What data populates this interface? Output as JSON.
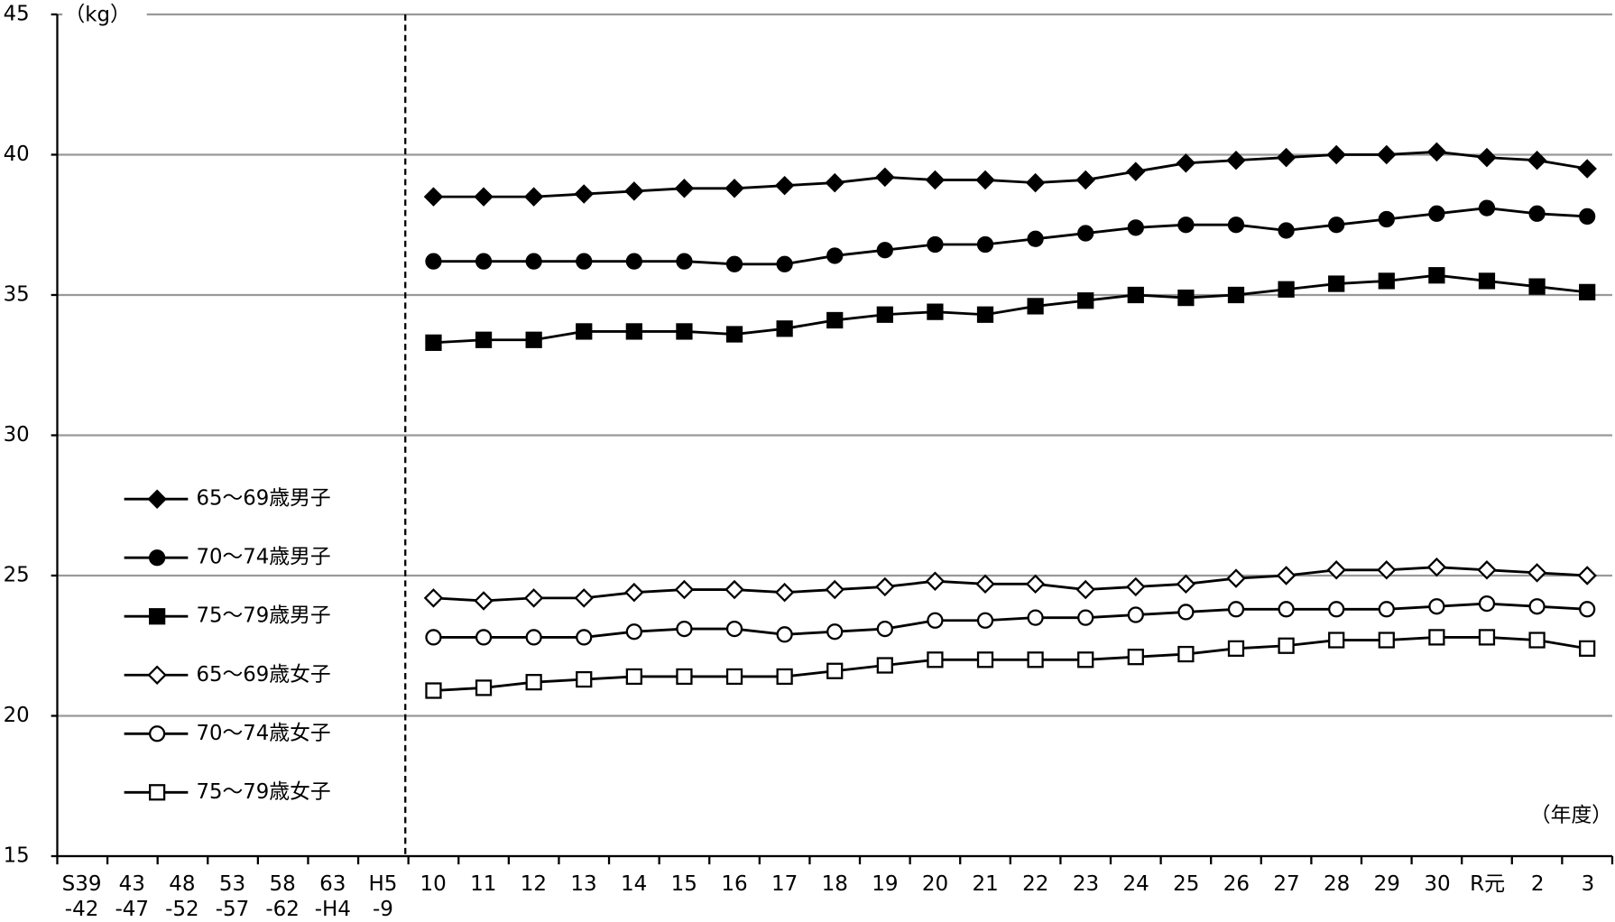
{
  "chart_data": {
    "type": "line",
    "y_unit_label": "（kg）",
    "x_unit_label": "（年度）",
    "categories": [
      "S39\n-42",
      "43\n-47",
      "48\n-52",
      "53\n-57",
      "58\n-62",
      "63\n-H4",
      "H5\n-9",
      "10",
      "11",
      "12",
      "13",
      "14",
      "15",
      "16",
      "17",
      "18",
      "19",
      "20",
      "21",
      "22",
      "23",
      "24",
      "25",
      "26",
      "27",
      "28",
      "29",
      "30",
      "R元",
      "2",
      "3"
    ],
    "ylim": [
      15,
      45
    ],
    "yticks": [
      15,
      20,
      25,
      30,
      35,
      40,
      45
    ],
    "grid": true,
    "legend": "left",
    "series": [
      {
        "name": "65～69歳男子",
        "color": "#000000",
        "marker": "diamond",
        "filled": true,
        "values": [
          null,
          null,
          null,
          null,
          null,
          null,
          null,
          38.5,
          38.5,
          38.5,
          38.6,
          38.7,
          38.8,
          38.8,
          38.9,
          39.0,
          39.2,
          39.1,
          39.1,
          39.0,
          39.1,
          39.4,
          39.7,
          39.8,
          39.9,
          40.0,
          40.0,
          40.1,
          39.9,
          39.8,
          39.5
        ]
      },
      {
        "name": "70～74歳男子",
        "color": "#000000",
        "marker": "circle",
        "filled": true,
        "values": [
          null,
          null,
          null,
          null,
          null,
          null,
          null,
          36.2,
          36.2,
          36.2,
          36.2,
          36.2,
          36.2,
          36.1,
          36.1,
          36.4,
          36.6,
          36.8,
          36.8,
          37.0,
          37.2,
          37.4,
          37.5,
          37.5,
          37.3,
          37.5,
          37.7,
          37.9,
          38.1,
          37.9,
          37.8
        ]
      },
      {
        "name": "75～79歳男子",
        "color": "#000000",
        "marker": "square",
        "filled": true,
        "values": [
          null,
          null,
          null,
          null,
          null,
          null,
          null,
          33.3,
          33.4,
          33.4,
          33.7,
          33.7,
          33.7,
          33.6,
          33.8,
          34.1,
          34.3,
          34.4,
          34.3,
          34.6,
          34.8,
          35.0,
          34.9,
          35.0,
          35.2,
          35.4,
          35.5,
          35.7,
          35.5,
          35.3,
          35.1
        ]
      },
      {
        "name": "65～69歳女子",
        "color": "#000000",
        "marker": "diamond",
        "filled": false,
        "values": [
          null,
          null,
          null,
          null,
          null,
          null,
          null,
          24.2,
          24.1,
          24.2,
          24.2,
          24.4,
          24.5,
          24.5,
          24.4,
          24.5,
          24.6,
          24.8,
          24.7,
          24.7,
          24.5,
          24.6,
          24.7,
          24.9,
          25.0,
          25.2,
          25.2,
          25.3,
          25.2,
          25.1,
          25.0
        ]
      },
      {
        "name": "70～74歳女子",
        "color": "#000000",
        "marker": "circle",
        "filled": false,
        "values": [
          null,
          null,
          null,
          null,
          null,
          null,
          null,
          22.8,
          22.8,
          22.8,
          22.8,
          23.0,
          23.1,
          23.1,
          22.9,
          23.0,
          23.1,
          23.4,
          23.4,
          23.5,
          23.5,
          23.6,
          23.7,
          23.8,
          23.8,
          23.8,
          23.8,
          23.9,
          24.0,
          23.9,
          23.8
        ]
      },
      {
        "name": "75～79歳女子",
        "color": "#000000",
        "marker": "square",
        "filled": false,
        "values": [
          null,
          null,
          null,
          null,
          null,
          null,
          null,
          20.9,
          21.0,
          21.2,
          21.3,
          21.4,
          21.4,
          21.4,
          21.4,
          21.6,
          21.8,
          22.0,
          22.0,
          22.0,
          22.0,
          22.1,
          22.2,
          22.4,
          22.5,
          22.7,
          22.7,
          22.8,
          22.8,
          22.7,
          22.4
        ]
      }
    ]
  }
}
